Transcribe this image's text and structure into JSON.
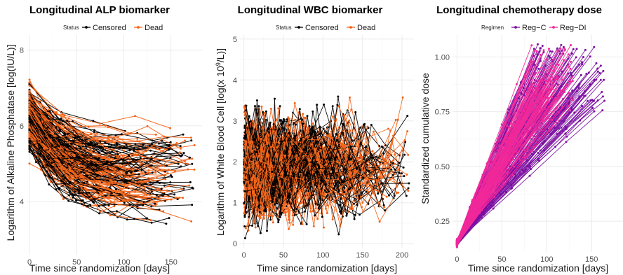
{
  "chart_data": [
    {
      "type": "line",
      "title": "Longitudinal ALP biomarker",
      "xlabel": "Time since randomization [days]",
      "ylabel": "Logarithm of Alkaline Phosphatase [log(IU/L)]",
      "xlim": [
        -3,
        183
      ],
      "ylim": [
        2.6,
        8.4
      ],
      "xticks": [
        0,
        50,
        100,
        150
      ],
      "yticks": [
        4,
        6,
        8
      ],
      "grid": true,
      "legend": {
        "title": "Status",
        "placement": "top",
        "entries": [
          {
            "name": "Censored",
            "color": "#000000"
          },
          {
            "name": "Dead",
            "color": "#F4661B"
          }
        ]
      },
      "series_summary": {
        "many_subject_trajectories": true,
        "value_range": [
          2.7,
          8.2
        ],
        "time_range": [
          0,
          175
        ],
        "start_center": 6.2,
        "end_center": 4.9
      }
    },
    {
      "type": "line",
      "title": "Longitudinal WBC biomarker",
      "xlabel": "Time since randomization [days]",
      "ylabel_prefix": "Logarithm of White Blood Cell [log(x 10",
      "ylabel_sup": "9",
      "ylabel_suffix": "/L)]",
      "xlim": [
        -5,
        215
      ],
      "ylim": [
        -0.1,
        5.1
      ],
      "xticks": [
        0,
        50,
        100,
        150,
        200
      ],
      "yticks": [
        0,
        1,
        2,
        3,
        4,
        5
      ],
      "grid": true,
      "legend": {
        "title": "Status",
        "placement": "top",
        "entries": [
          {
            "name": "Censored",
            "color": "#000000"
          },
          {
            "name": "Dead",
            "color": "#F4661B"
          }
        ]
      },
      "series_summary": {
        "many_subject_trajectories": true,
        "value_range": [
          0.05,
          4.8
        ],
        "time_range": [
          0,
          210
        ],
        "center": 1.9
      }
    },
    {
      "type": "line",
      "title": "Longitudinal chemotherapy dose",
      "xlabel": "Time since randomization [days]",
      "ylabel": "Standardized cumulative dose",
      "xlim": [
        -5,
        185
      ],
      "ylim": [
        0.11,
        1.1
      ],
      "xticks": [
        0,
        50,
        100,
        150
      ],
      "yticks": [
        0.25,
        0.5,
        0.75,
        1.0
      ],
      "ytick_labels": [
        "0.25",
        "0.50",
        "0.75",
        "1.00"
      ],
      "grid": true,
      "legend": {
        "title": "Regimen",
        "placement": "top",
        "entries": [
          {
            "name": "Reg−C",
            "color": "#7A0FA0"
          },
          {
            "name": "Reg−DI",
            "color": "#F0289A"
          }
        ]
      },
      "series_summary": {
        "many_subject_trajectories": true,
        "start": [
          0,
          0.15
        ],
        "Reg-C_end_time_range": [
          85,
          165
        ],
        "Reg-DI_end_time_range": [
          75,
          130
        ],
        "end_value_range": [
          0.42,
          1.05
        ]
      }
    }
  ]
}
